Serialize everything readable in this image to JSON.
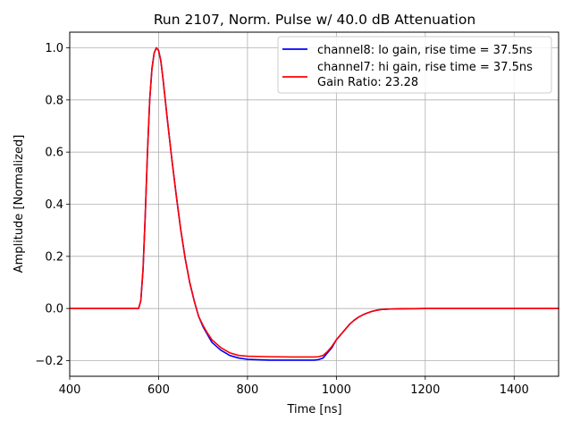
{
  "chart_data": {
    "type": "line",
    "title": "Run 2107, Norm. Pulse w/ 40.0 dB Attenuation",
    "xlabel": "Time [ns]",
    "ylabel": "Amplitude [Normalized]",
    "xlim": [
      400,
      1500
    ],
    "ylim": [
      -0.26,
      1.06
    ],
    "xticks": [
      400,
      600,
      800,
      1000,
      1200,
      1400
    ],
    "yticks": [
      -0.2,
      0.0,
      0.2,
      0.4,
      0.6,
      0.8,
      1.0
    ],
    "xtick_labels": [
      "400",
      "600",
      "800",
      "1000",
      "1200",
      "1400"
    ],
    "ytick_labels": [
      "−0.2",
      "0.0",
      "0.2",
      "0.4",
      "0.6",
      "0.8",
      "1.0"
    ],
    "grid": true,
    "legend_position": "top-right",
    "legend_extra": "Gain Ratio: 23.28",
    "series": [
      {
        "name": "channel8: lo gain, rise time = 37.5ns",
        "color": "#0000ff",
        "x": [
          400,
          500,
          550,
          555,
          560,
          565,
          570,
          575,
          580,
          585,
          590,
          595,
          600,
          605,
          610,
          615,
          620,
          630,
          640,
          650,
          660,
          670,
          680,
          690,
          700,
          710,
          720,
          740,
          760,
          780,
          800,
          850,
          900,
          950,
          960,
          970,
          980,
          990,
          1000,
          1010,
          1020,
          1030,
          1040,
          1050,
          1060,
          1070,
          1080,
          1090,
          1100,
          1120,
          1150,
          1200,
          1300,
          1400,
          1500
        ],
        "y": [
          0.0,
          0.0,
          0.0,
          0.0,
          0.03,
          0.15,
          0.36,
          0.6,
          0.8,
          0.92,
          0.98,
          1.0,
          0.99,
          0.95,
          0.88,
          0.8,
          0.72,
          0.57,
          0.43,
          0.3,
          0.19,
          0.1,
          0.03,
          -0.03,
          -0.07,
          -0.1,
          -0.13,
          -0.16,
          -0.18,
          -0.19,
          -0.195,
          -0.198,
          -0.198,
          -0.198,
          -0.196,
          -0.19,
          -0.17,
          -0.15,
          -0.12,
          -0.1,
          -0.08,
          -0.06,
          -0.045,
          -0.033,
          -0.024,
          -0.017,
          -0.011,
          -0.007,
          -0.004,
          -0.002,
          -0.001,
          0.0,
          0.0,
          0.0,
          0.0
        ]
      },
      {
        "name": "channel7: hi gain, rise time = 37.5ns",
        "color": "#ff0000",
        "x": [
          400,
          500,
          550,
          555,
          560,
          565,
          570,
          575,
          580,
          585,
          590,
          595,
          600,
          605,
          610,
          615,
          620,
          630,
          640,
          650,
          660,
          670,
          680,
          690,
          700,
          710,
          720,
          740,
          760,
          780,
          800,
          850,
          900,
          950,
          960,
          970,
          980,
          990,
          1000,
          1010,
          1020,
          1030,
          1040,
          1050,
          1060,
          1070,
          1080,
          1090,
          1100,
          1120,
          1150,
          1200,
          1300,
          1400,
          1500
        ],
        "y": [
          0.0,
          0.0,
          0.0,
          0.0,
          0.03,
          0.15,
          0.36,
          0.6,
          0.8,
          0.92,
          0.98,
          1.0,
          0.99,
          0.95,
          0.88,
          0.8,
          0.72,
          0.57,
          0.43,
          0.3,
          0.19,
          0.1,
          0.03,
          -0.03,
          -0.065,
          -0.095,
          -0.12,
          -0.15,
          -0.17,
          -0.18,
          -0.183,
          -0.185,
          -0.186,
          -0.186,
          -0.185,
          -0.18,
          -0.165,
          -0.145,
          -0.12,
          -0.1,
          -0.08,
          -0.06,
          -0.045,
          -0.033,
          -0.024,
          -0.017,
          -0.011,
          -0.007,
          -0.004,
          -0.002,
          -0.001,
          0.0,
          0.0,
          0.0,
          0.0
        ]
      }
    ]
  }
}
